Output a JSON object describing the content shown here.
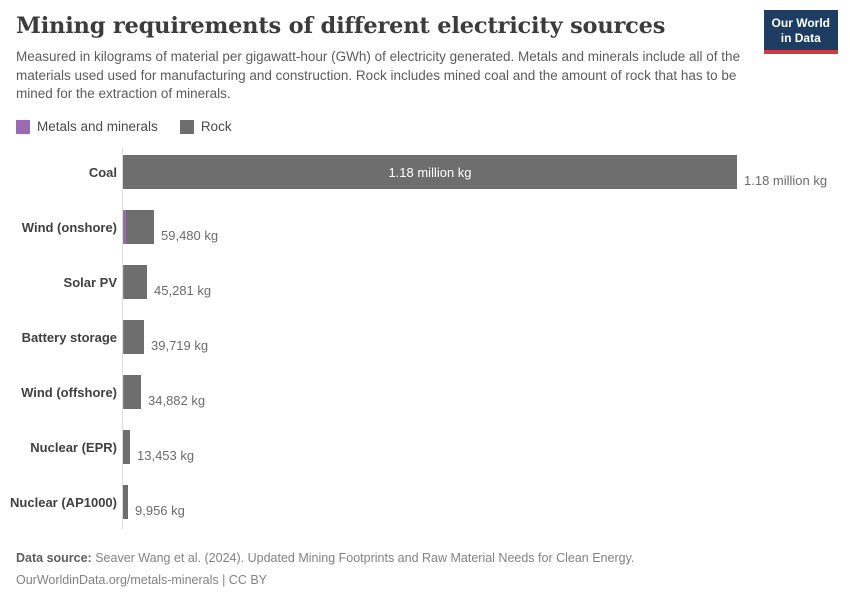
{
  "header": {
    "title": "Mining requirements of different electricity sources",
    "subtitle": "Measured in kilograms of material per gigawatt-hour (GWh) of electricity generated. Metals and minerals include all of the materials used used for manufacturing and construction. Rock includes mined coal and the amount of rock that has to be mined for the extraction of minerals.",
    "logo_line1": "Our World",
    "logo_line2": "in Data"
  },
  "legend": {
    "items": [
      {
        "label": "Metals and minerals"
      },
      {
        "label": "Rock"
      }
    ]
  },
  "chart_data": {
    "type": "bar",
    "orientation": "horizontal",
    "stacked": true,
    "unit": "kg of material per GWh",
    "xlim": [
      0,
      1180000
    ],
    "categories": [
      "Coal",
      "Wind (onshore)",
      "Solar PV",
      "Battery storage",
      "Wind (offshore)",
      "Nuclear (EPR)",
      "Nuclear (AP1000)"
    ],
    "totals": [
      1180000,
      59480,
      45281,
      39719,
      34882,
      13453,
      9956
    ],
    "value_labels": [
      "1.18 million kg",
      "59,480 kg",
      "45,281 kg",
      "39,719 kg",
      "34,882 kg",
      "13,453 kg",
      "9,956 kg"
    ],
    "inner_bar_label": "1.18 million kg",
    "series": [
      {
        "name": "Metals and minerals",
        "values": [
          0,
          5800,
          1900,
          1900,
          1900,
          0,
          0
        ]
      },
      {
        "name": "Rock",
        "values": [
          1180000,
          53680,
          43381,
          37819,
          32982,
          13453,
          9956
        ]
      }
    ],
    "legend_position": "top-left",
    "grid": false
  },
  "colors": {
    "metals": "#9b6bb2",
    "rock": "#6e6e6e",
    "axis": "#dcdcdc",
    "logo_bg": "#1d3d63",
    "logo_stripe": "#d0393f"
  },
  "footer": {
    "datasource_label": "Data source:",
    "datasource_text": " Seaver Wang et al. (2024). Updated Mining Footprints and Raw Material Needs for Clean Energy.",
    "license_line": "OurWorldinData.org/metals-minerals | CC BY"
  }
}
